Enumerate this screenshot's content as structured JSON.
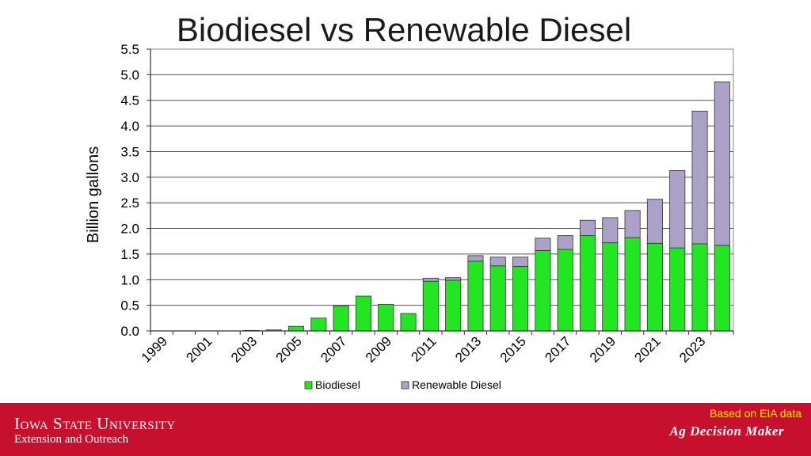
{
  "slide": {
    "title": "Biodiesel vs Renewable Diesel",
    "source_note": "Based on EIA data",
    "brand": "Ag Decision Maker"
  },
  "footer": {
    "university": "Iowa State University",
    "unit": "Extension and Outreach"
  },
  "colors": {
    "biodiesel": "#22e622",
    "renewable_diesel": "#aaa0c8",
    "footer": "#c8102e",
    "source_note": "#ffe000"
  },
  "chart_data": {
    "type": "bar",
    "stacked": true,
    "title": "Biodiesel vs Renewable Diesel",
    "ylabel": "Billion gallons",
    "xlabel": "",
    "ylim": [
      0,
      5.5
    ],
    "yticks": [
      "0.0",
      "0.5",
      "1.0",
      "1.5",
      "2.0",
      "2.5",
      "3.0",
      "3.5",
      "4.0",
      "4.5",
      "5.0",
      "5.5"
    ],
    "grid": true,
    "legend_position": "bottom",
    "categories": [
      "1999",
      "2000",
      "2001",
      "2002",
      "2003",
      "2004",
      "2005",
      "2006",
      "2007",
      "2008",
      "2009",
      "2010",
      "2011",
      "2012",
      "2013",
      "2014",
      "2015",
      "2016",
      "2017",
      "2018",
      "2019",
      "2020",
      "2021",
      "2022",
      "2023",
      "2024"
    ],
    "xtick_labels": [
      "1999",
      "2001",
      "2003",
      "2005",
      "2007",
      "2009",
      "2011",
      "2013",
      "2015",
      "2017",
      "2019",
      "2021",
      "2023"
    ],
    "series": [
      {
        "name": "Biodiesel",
        "values": [
          0.0,
          0.0,
          0.0,
          0.0,
          0.01,
          0.02,
          0.09,
          0.25,
          0.49,
          0.68,
          0.52,
          0.34,
          0.97,
          0.99,
          1.36,
          1.27,
          1.26,
          1.57,
          1.59,
          1.86,
          1.72,
          1.82,
          1.71,
          1.62,
          1.7,
          1.67
        ]
      },
      {
        "name": "Renewable Diesel",
        "values": [
          0.0,
          0.0,
          0.0,
          0.0,
          0.0,
          0.0,
          0.0,
          0.0,
          0.0,
          0.0,
          0.0,
          0.0,
          0.06,
          0.05,
          0.11,
          0.17,
          0.18,
          0.24,
          0.27,
          0.3,
          0.49,
          0.53,
          0.86,
          1.51,
          2.59,
          3.19
        ]
      }
    ]
  }
}
